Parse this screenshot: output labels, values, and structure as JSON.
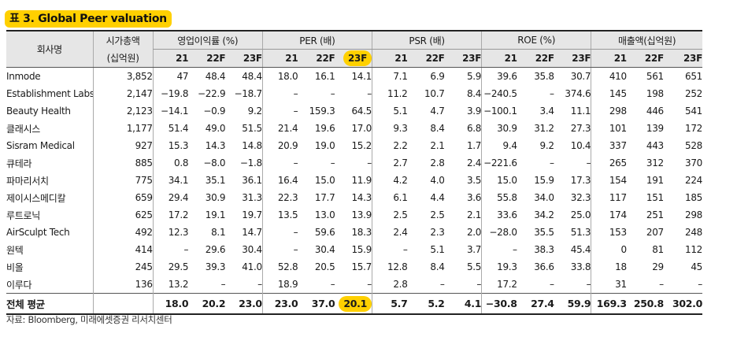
{
  "title": "표 3. Global Peer valuation",
  "headers": {
    "company": "회사명",
    "mktcap": "시가총액",
    "mktcap_unit": "(십억원)",
    "opm": "영업이익률 (%)",
    "per": "PER (배)",
    "psr": "PSR (배)",
    "roe": "ROE (%)",
    "sales": "매출액(십억원)",
    "years": [
      "21",
      "22F",
      "23F"
    ]
  },
  "rows": [
    {
      "name": "Inmode",
      "mktcap": "3,852",
      "opm": [
        "47",
        "48.4",
        "48.4"
      ],
      "per": [
        "18.0",
        "16.1",
        "14.1"
      ],
      "psr": [
        "7.1",
        "6.9",
        "5.9"
      ],
      "roe": [
        "39.6",
        "35.8",
        "30.7"
      ],
      "sales": [
        "410",
        "561",
        "651"
      ]
    },
    {
      "name": "Establishment Labs",
      "mktcap": "2,147",
      "opm": [
        "−19.8",
        "−22.9",
        "−18.7"
      ],
      "per": [
        "–",
        "–",
        "–"
      ],
      "psr": [
        "11.2",
        "10.7",
        "8.4"
      ],
      "roe": [
        "−240.5",
        "–",
        "374.6"
      ],
      "sales": [
        "145",
        "198",
        "252"
      ]
    },
    {
      "name": "Beauty Health",
      "mktcap": "2,123",
      "opm": [
        "−14.1",
        "−0.9",
        "9.2"
      ],
      "per": [
        "–",
        "159.3",
        "64.5"
      ],
      "psr": [
        "5.1",
        "4.7",
        "3.9"
      ],
      "roe": [
        "−100.1",
        "3.4",
        "11.1"
      ],
      "sales": [
        "298",
        "446",
        "541"
      ]
    },
    {
      "name": "클래시스",
      "mktcap": "1,177",
      "opm": [
        "51.4",
        "49.0",
        "51.5"
      ],
      "per": [
        "21.4",
        "19.6",
        "17.0"
      ],
      "psr": [
        "9.3",
        "8.4",
        "6.8"
      ],
      "roe": [
        "30.9",
        "31.2",
        "27.3"
      ],
      "sales": [
        "101",
        "139",
        "172"
      ]
    },
    {
      "name": "Sisram Medical",
      "mktcap": "927",
      "opm": [
        "15.3",
        "14.3",
        "14.8"
      ],
      "per": [
        "20.9",
        "19.0",
        "15.2"
      ],
      "psr": [
        "2.2",
        "2.1",
        "1.7"
      ],
      "roe": [
        "9.4",
        "9.2",
        "10.4"
      ],
      "sales": [
        "337",
        "443",
        "528"
      ]
    },
    {
      "name": "큐테라",
      "mktcap": "885",
      "opm": [
        "0.8",
        "−8.0",
        "−1.8"
      ],
      "per": [
        "–",
        "–",
        "–"
      ],
      "psr": [
        "2.7",
        "2.8",
        "2.4"
      ],
      "roe": [
        "−221.6",
        "–",
        "–"
      ],
      "sales": [
        "265",
        "312",
        "370"
      ]
    },
    {
      "name": "파마리서치",
      "mktcap": "775",
      "opm": [
        "34.1",
        "35.1",
        "36.1"
      ],
      "per": [
        "16.4",
        "15.0",
        "11.9"
      ],
      "psr": [
        "4.2",
        "4.0",
        "3.5"
      ],
      "roe": [
        "15.0",
        "15.9",
        "17.3"
      ],
      "sales": [
        "154",
        "191",
        "224"
      ]
    },
    {
      "name": "제이시스메디칼",
      "mktcap": "659",
      "opm": [
        "29.4",
        "30.9",
        "31.3"
      ],
      "per": [
        "22.3",
        "17.7",
        "14.3"
      ],
      "psr": [
        "6.1",
        "4.4",
        "3.6"
      ],
      "roe": [
        "55.8",
        "34.0",
        "32.3"
      ],
      "sales": [
        "117",
        "151",
        "185"
      ]
    },
    {
      "name": "루트로닉",
      "mktcap": "625",
      "opm": [
        "17.2",
        "19.1",
        "19.7"
      ],
      "per": [
        "13.5",
        "13.0",
        "13.9"
      ],
      "psr": [
        "2.5",
        "2.5",
        "2.1"
      ],
      "roe": [
        "33.6",
        "34.2",
        "25.0"
      ],
      "sales": [
        "174",
        "251",
        "298"
      ]
    },
    {
      "name": "AirSculpt Tech",
      "mktcap": "492",
      "opm": [
        "12.3",
        "8.1",
        "14.7"
      ],
      "per": [
        "–",
        "59.6",
        "18.3"
      ],
      "psr": [
        "2.4",
        "2.3",
        "2.0"
      ],
      "roe": [
        "−28.0",
        "35.5",
        "51.3"
      ],
      "sales": [
        "153",
        "207",
        "248"
      ]
    },
    {
      "name": "원텍",
      "mktcap": "414",
      "opm": [
        "–",
        "29.6",
        "30.4"
      ],
      "per": [
        "–",
        "30.4",
        "15.9"
      ],
      "psr": [
        "–",
        "5.1",
        "3.7"
      ],
      "roe": [
        "–",
        "38.3",
        "45.4"
      ],
      "sales": [
        "0",
        "81",
        "112"
      ]
    },
    {
      "name": "비올",
      "mktcap": "245",
      "opm": [
        "29.5",
        "39.3",
        "41.0"
      ],
      "per": [
        "52.8",
        "20.5",
        "15.7"
      ],
      "psr": [
        "12.8",
        "8.4",
        "5.5"
      ],
      "roe": [
        "19.3",
        "36.6",
        "33.8"
      ],
      "sales": [
        "18",
        "29",
        "45"
      ]
    },
    {
      "name": "이루다",
      "mktcap": "136",
      "opm": [
        "13.2",
        "–",
        "–"
      ],
      "per": [
        "18.9",
        "–",
        "–"
      ],
      "psr": [
        "2.8",
        "–",
        "–"
      ],
      "roe": [
        "17.2",
        "–",
        "–"
      ],
      "sales": [
        "31",
        "–",
        "–"
      ]
    }
  ],
  "average": {
    "name": "전체 평균",
    "mktcap": "",
    "opm": [
      "18.0",
      "20.2",
      "23.0"
    ],
    "per": [
      "23.0",
      "37.0",
      "20.1"
    ],
    "psr": [
      "5.7",
      "5.2",
      "4.1"
    ],
    "roe": [
      "−30.8",
      "27.4",
      "59.9"
    ],
    "sales": [
      "169.3",
      "250.8",
      "302.0"
    ]
  },
  "highlight_color": "#ffd000",
  "source": "자료: Bloomberg, 미래에셋증권 리서치센터"
}
